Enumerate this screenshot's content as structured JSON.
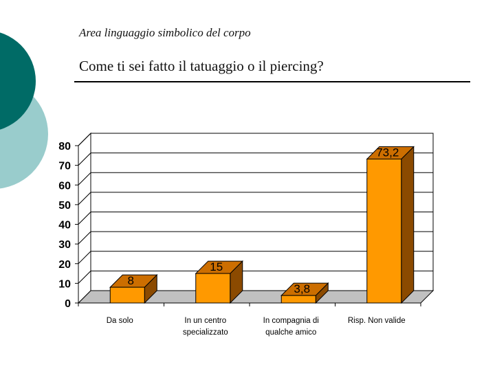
{
  "slide": {
    "subtitle": "Area linguaggio simbolico del corpo",
    "title": "Come ti sei fatto il tatuaggio o il piercing?"
  },
  "colors": {
    "teal_dark": "#006b66",
    "teal_light": "#99cccc",
    "bar_front": "#ff9900",
    "bar_side": "#8b4a00",
    "bar_top": "#cc6e00"
  },
  "chart_data": {
    "type": "bar",
    "title": "",
    "xlabel": "",
    "ylabel": "",
    "categories": [
      [
        "Da solo"
      ],
      [
        "In un centro",
        "specializzato"
      ],
      [
        "In compagnia di",
        "qualche amico"
      ],
      [
        "Risp. Non valide"
      ]
    ],
    "values": [
      8,
      15,
      3.8,
      73.2
    ],
    "data_labels": [
      "8",
      "15",
      "3,8",
      "73,2"
    ],
    "ylim": [
      0,
      80
    ],
    "yticks": [
      0,
      10,
      20,
      30,
      40,
      50,
      60,
      70,
      80
    ],
    "grid": true,
    "legend": "none"
  }
}
